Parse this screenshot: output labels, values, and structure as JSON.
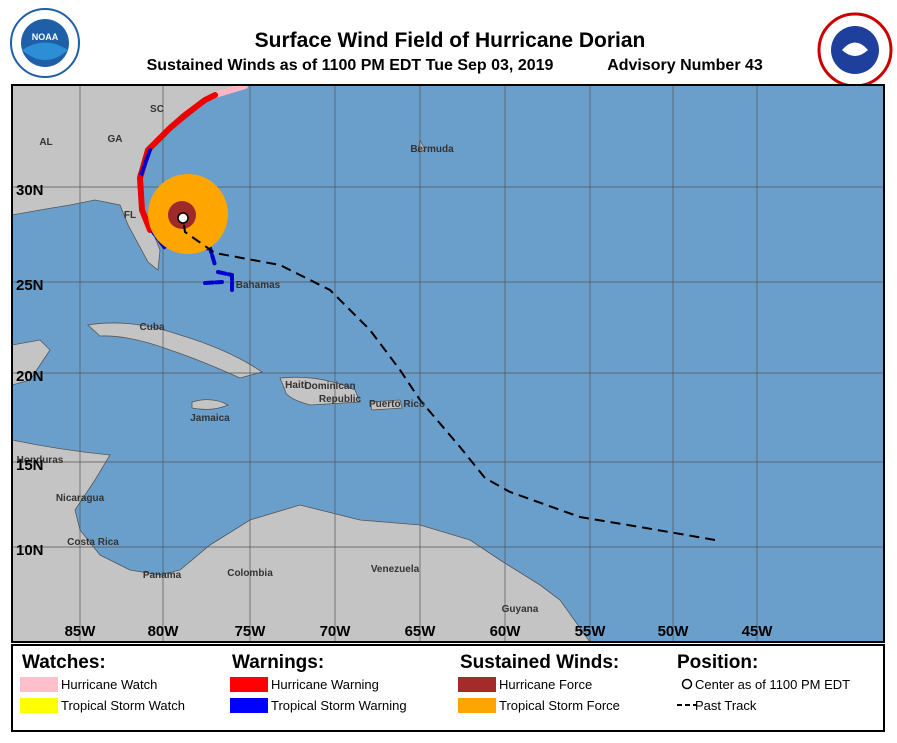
{
  "header": {
    "title": "Surface Wind Field of Hurricane Dorian",
    "subtitle": "Sustained Winds as of 1100 PM EDT Tue Sep 03, 2019",
    "advisory": "Advisory Number 43"
  },
  "map": {
    "lat_labels": [
      "30N",
      "25N",
      "20N",
      "15N",
      "10N"
    ],
    "lon_labels": [
      "85W",
      "80W",
      "75W",
      "70W",
      "65W",
      "60W",
      "55W",
      "50W",
      "45W"
    ],
    "places": [
      "SC",
      "GA",
      "AL",
      "FL",
      "Bermuda",
      "Bahamas",
      "Cuba",
      "Haiti",
      "Dominican",
      "Republic",
      "Puerto Rico",
      "Jamaica",
      "Honduras",
      "Nicaragua",
      "Costa Rica",
      "Panama",
      "Colombia",
      "Venezuela",
      "Guyana"
    ]
  },
  "legend": {
    "watches": {
      "title": "Watches:",
      "items": [
        "Hurricane Watch",
        "Tropical Storm Watch"
      ]
    },
    "warnings": {
      "title": "Warnings:",
      "items": [
        "Hurricane Warning",
        "Tropical Storm Warning"
      ]
    },
    "winds": {
      "title": "Sustained Winds:",
      "items": [
        "Hurricane Force",
        "Tropical Storm Force"
      ]
    },
    "position": {
      "title": "Position:",
      "items": [
        "Center as of 1100 PM EDT",
        "Past Track"
      ]
    }
  }
}
